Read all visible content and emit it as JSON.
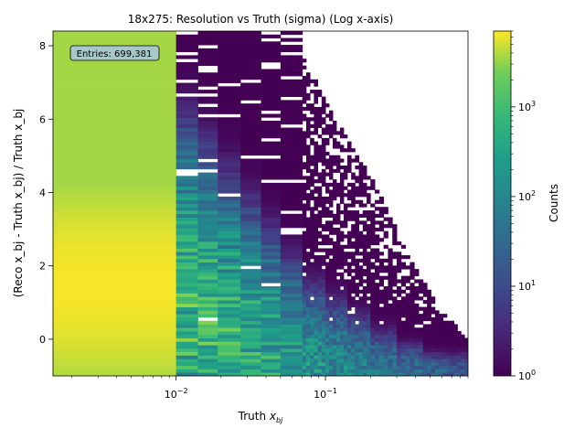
{
  "chart_data": {
    "type": "heatmap",
    "title": "18x275: Resolution vs Truth (sigma) (Log x-axis)",
    "xlabel": {
      "prefix": "Truth ",
      "var": "x",
      "sub": "bj"
    },
    "ylabel": "(Reco x_bj - Truth x_bj) / Truth x_bj",
    "x_scale": "log",
    "xlim": [
      0.0015,
      0.9
    ],
    "ylim": [
      -1.0,
      8.4
    ],
    "x_ticks": [
      {
        "value": 0.01,
        "base": "10",
        "exp": "−2"
      },
      {
        "value": 0.1,
        "base": "10",
        "exp": "−1"
      }
    ],
    "y_ticks": [
      {
        "value": 0,
        "label": "0"
      },
      {
        "value": 2,
        "label": "2"
      },
      {
        "value": 4,
        "label": "4"
      },
      {
        "value": 6,
        "label": "6"
      },
      {
        "value": 8,
        "label": "8"
      }
    ],
    "annotation": "Entries: 699,381",
    "colorbar": {
      "label": "Counts",
      "scale": "log",
      "range": [
        1,
        7000
      ],
      "ticks": [
        {
          "value": 1,
          "base": "10",
          "exp": "0"
        },
        {
          "value": 10,
          "base": "10",
          "exp": "1"
        },
        {
          "value": 100,
          "base": "10",
          "exp": "2"
        },
        {
          "value": 1000,
          "base": "10",
          "exp": "3"
        }
      ],
      "colormap": "viridis"
    },
    "columns": [
      {
        "x_min": 0.0015,
        "x_max": 0.01,
        "density": 1.0
      },
      {
        "x_min": 0.01,
        "x_max": 0.014,
        "density": 0.55
      },
      {
        "x_min": 0.014,
        "x_max": 0.019,
        "density": 0.48
      },
      {
        "x_min": 0.019,
        "x_max": 0.027,
        "density": 0.38
      },
      {
        "x_min": 0.027,
        "x_max": 0.037,
        "density": 0.3
      },
      {
        "x_min": 0.037,
        "x_max": 0.05,
        "density": 0.22
      },
      {
        "x_min": 0.05,
        "x_max": 0.07,
        "density": 0.14
      },
      {
        "x_min": 0.07,
        "x_max": 0.1,
        "density": 0.09
      },
      {
        "x_min": 0.1,
        "x_max": 0.14,
        "density": 0.06
      },
      {
        "x_min": 0.14,
        "x_max": 0.2,
        "density": 0.04
      },
      {
        "x_min": 0.2,
        "x_max": 0.3,
        "density": 0.02
      },
      {
        "x_min": 0.3,
        "x_max": 0.45,
        "density": 0.012
      },
      {
        "x_min": 0.45,
        "x_max": 0.65,
        "density": 0.008
      },
      {
        "x_min": 0.65,
        "x_max": 0.9,
        "density": 0.005
      }
    ],
    "ridge": {
      "description": "peak counts near zero resolution; upper edge of populated region falls with x",
      "y_peak_at_low_x": 1.5,
      "upper_edge": [
        {
          "x": 0.01,
          "y": 8.4
        },
        {
          "x": 0.03,
          "y": 8.4
        },
        {
          "x": 0.06,
          "y": 8.4
        },
        {
          "x": 0.1,
          "y": 6.5
        },
        {
          "x": 0.2,
          "y": 4.5
        },
        {
          "x": 0.35,
          "y": 2.4
        },
        {
          "x": 0.6,
          "y": 0.8
        },
        {
          "x": 0.9,
          "y": 0.0
        }
      ]
    }
  }
}
